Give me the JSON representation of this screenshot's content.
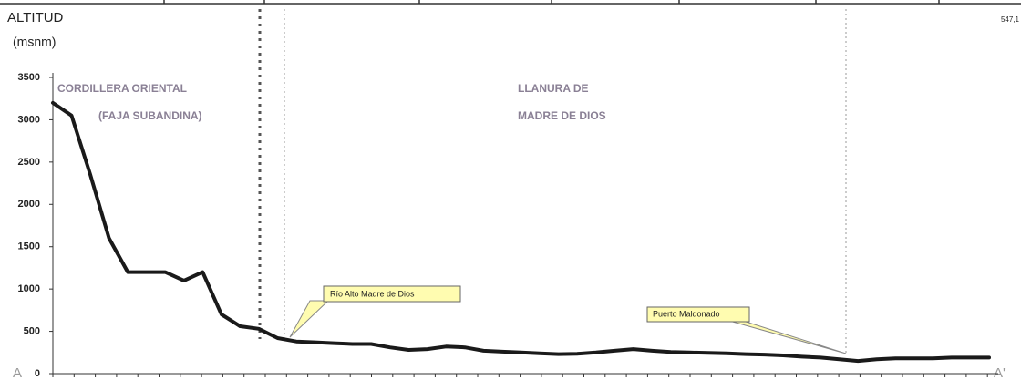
{
  "chart_data": {
    "type": "line",
    "y_label_line1": "ALTITUD",
    "y_label_line2": "(msnm)",
    "corner_note": "547,1",
    "start_label": "A",
    "end_label": "A'",
    "regions": [
      "CORDILLERA ORIENTAL",
      "(FAJA SUBANDINA)",
      "LLANURA DE",
      "MADRE DE DIOS"
    ],
    "annotations": [
      "Río Alto Madre de Dios",
      "Puerto Maldonado"
    ],
    "series": [
      {
        "name": "Altitud",
        "color": "#1a1a1a",
        "values": [
          3200,
          3050,
          2350,
          1600,
          1200,
          1200,
          1200,
          1100,
          1200,
          700,
          560,
          530,
          420,
          380,
          370,
          360,
          350,
          350,
          310,
          280,
          290,
          320,
          310,
          270,
          260,
          250,
          240,
          230,
          235,
          250,
          270,
          290,
          270,
          255,
          250,
          245,
          240,
          230,
          225,
          215,
          200,
          190,
          170,
          150,
          170,
          180,
          180,
          180,
          190,
          190,
          190
        ]
      }
    ],
    "ylim": [
      0,
      3500
    ],
    "yticks": [
      0,
      500,
      1000,
      1500,
      2000,
      2500,
      3000,
      3500
    ]
  }
}
